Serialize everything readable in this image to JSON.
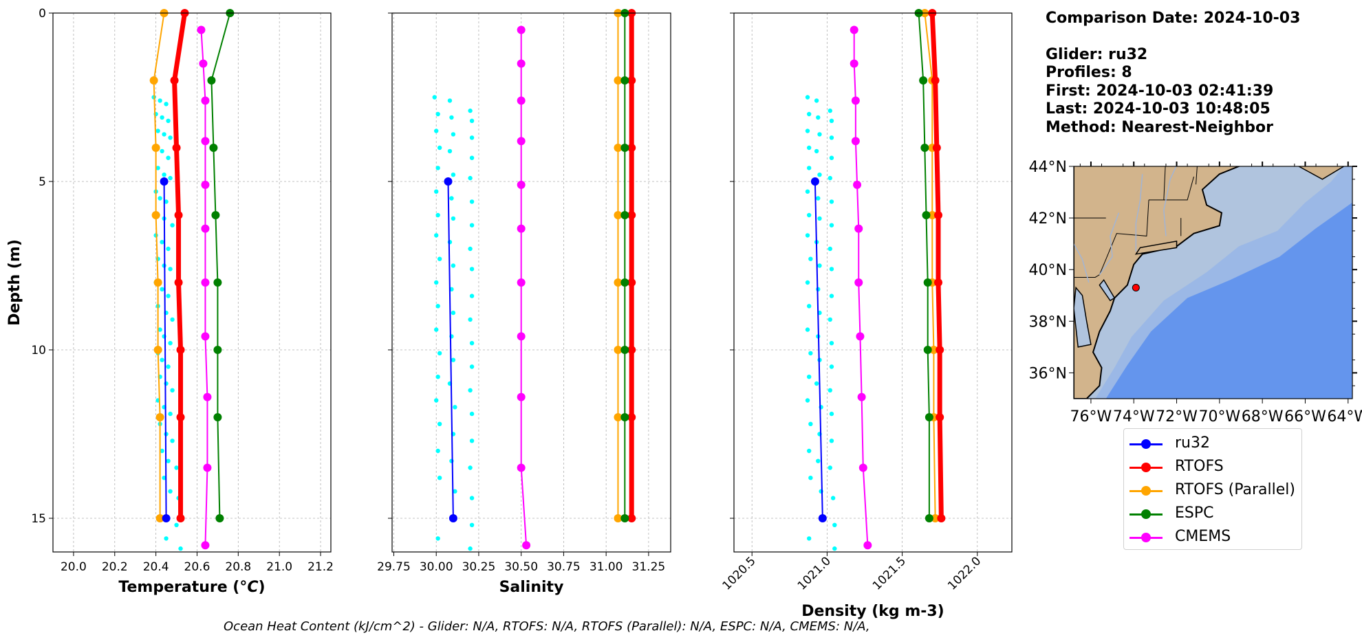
{
  "info": {
    "comparison_date": "Comparison Date: 2024-10-03",
    "glider": "Glider: ru32",
    "profiles": "Profiles: 8",
    "first": "First: 2024-10-03 02:41:39",
    "last": "Last: 2024-10-03 10:48:05",
    "method": "Method: Nearest-Neighbor"
  },
  "legend": [
    {
      "name": "ru32",
      "color": "#0000ff"
    },
    {
      "name": "RTOFS",
      "color": "#ff0000"
    },
    {
      "name": "RTOFS (Parallel)",
      "color": "#ffa500"
    },
    {
      "name": "ESPC",
      "color": "#008000"
    },
    {
      "name": "CMEMS",
      "color": "#ff00ff"
    }
  ],
  "footer": "Ocean Heat Content (kJ/cm^2) - Glider: N/A,  RTOFS: N/A,  RTOFS (Parallel): N/A,  ESPC: N/A,  CMEMS: N/A,",
  "chart_data": [
    {
      "type": "line",
      "xlabel": "Temperature (°C)",
      "xlabel_html": "Temperature (<tspan font-style='italic'>°C</tspan>)",
      "ylabel": "Depth (m)",
      "xlim": [
        19.9,
        21.25
      ],
      "ylim": [
        16,
        0
      ],
      "xticks": [
        "20.0",
        "20.2",
        "20.4",
        "20.6",
        "20.8",
        "21.0",
        "21.2"
      ],
      "xtick_values": [
        20.0,
        20.2,
        20.4,
        20.6,
        20.8,
        21.0,
        21.2
      ],
      "yticks": [
        "0",
        "5",
        "10",
        "15"
      ],
      "ytick_values": [
        0,
        5,
        10,
        15
      ],
      "grid": true,
      "glider_scatter": {
        "name": "ru32 (raw)",
        "color": "#00ffff",
        "x": [
          20.39,
          20.42,
          20.45,
          20.4,
          20.43,
          20.46,
          20.41,
          20.44,
          20.47,
          20.4,
          20.43,
          20.46,
          20.41,
          20.44,
          20.47,
          20.4,
          20.42,
          20.45,
          20.41,
          20.44,
          20.48,
          20.4,
          20.43,
          20.46,
          20.41,
          20.44,
          20.47,
          20.4,
          20.43,
          20.46,
          20.41,
          20.45,
          20.48,
          20.42,
          20.44,
          20.47,
          20.41,
          20.43,
          20.46,
          20.42,
          20.45,
          20.48,
          20.41,
          20.44,
          20.47,
          20.42,
          20.45,
          20.48,
          20.43,
          20.46,
          20.5,
          20.44,
          20.47,
          20.51,
          20.45,
          20.5,
          20.52
        ],
        "y": [
          2.5,
          2.6,
          2.7,
          3.0,
          3.1,
          3.2,
          3.5,
          3.6,
          3.7,
          4.0,
          4.1,
          4.3,
          4.6,
          4.8,
          4.9,
          5.3,
          5.5,
          5.6,
          6.0,
          6.1,
          6.3,
          6.6,
          6.8,
          7.0,
          7.3,
          7.5,
          7.6,
          8.0,
          8.2,
          8.4,
          8.7,
          8.9,
          9.1,
          9.4,
          9.6,
          9.8,
          10.1,
          10.3,
          10.5,
          10.8,
          11.0,
          11.2,
          11.5,
          11.7,
          11.9,
          12.2,
          12.5,
          12.7,
          13.0,
          13.3,
          13.5,
          13.8,
          14.2,
          14.4,
          15.6,
          15.2,
          15.9
        ]
      },
      "series": [
        {
          "name": "RTOFS (Parallel)",
          "color": "#ffa500",
          "width": 2,
          "x": [
            20.44,
            20.39,
            20.4,
            20.4,
            20.41,
            20.41,
            20.42,
            20.42
          ],
          "y": [
            0,
            2,
            4,
            6,
            8,
            10,
            12,
            15
          ]
        },
        {
          "name": "RTOFS",
          "color": "#ff0000",
          "width": 7,
          "x": [
            20.54,
            20.49,
            20.5,
            20.51,
            20.51,
            20.52,
            20.52,
            20.52
          ],
          "y": [
            0,
            2,
            4,
            6,
            8,
            10,
            12,
            15
          ]
        },
        {
          "name": "ESPC",
          "color": "#008000",
          "width": 2,
          "x": [
            20.76,
            20.67,
            20.68,
            20.69,
            20.7,
            20.7,
            20.7,
            20.71
          ],
          "y": [
            0,
            2,
            4,
            6,
            8,
            10,
            12,
            15
          ]
        },
        {
          "name": "CMEMS",
          "color": "#ff00ff",
          "width": 2,
          "x": [
            20.62,
            20.63,
            20.64,
            20.64,
            20.64,
            20.64,
            20.64,
            20.64,
            20.65,
            20.65,
            20.64
          ],
          "y": [
            0.5,
            1.5,
            2.6,
            3.8,
            5.1,
            6.4,
            8.0,
            9.6,
            11.4,
            13.5,
            15.8
          ]
        },
        {
          "name": "ru32",
          "color": "#0000ff",
          "width": 2,
          "x": [
            20.44,
            20.45
          ],
          "y": [
            5,
            15
          ]
        }
      ]
    },
    {
      "type": "line",
      "xlabel": "Salinity",
      "xlim": [
        29.74,
        31.38
      ],
      "ylim": [
        16,
        0
      ],
      "xticks": [
        "29.75",
        "30.00",
        "30.25",
        "30.50",
        "30.75",
        "31.00",
        "31.25"
      ],
      "xtick_values": [
        29.75,
        30.0,
        30.25,
        30.5,
        30.75,
        31.0,
        31.25
      ],
      "grid": true,
      "glider_scatter": {
        "name": "ru32 (raw)",
        "color": "#00ffff",
        "x": [
          29.99,
          30.08,
          30.2,
          30.01,
          30.09,
          30.21,
          30.0,
          30.1,
          30.21,
          30.02,
          30.08,
          30.21,
          30.01,
          30.1,
          30.2,
          30.0,
          30.09,
          30.21,
          30.01,
          30.1,
          30.21,
          30.0,
          30.08,
          30.2,
          30.02,
          30.1,
          30.21,
          30.0,
          30.09,
          30.21,
          30.01,
          30.1,
          30.2,
          30.0,
          30.09,
          30.21,
          30.02,
          30.1,
          30.21,
          30.01,
          30.08,
          30.2,
          30.0,
          30.11,
          30.21,
          30.02,
          30.1,
          30.21,
          30.01,
          30.09,
          30.2,
          30.02,
          30.11,
          30.21,
          30.01,
          30.21,
          30.2
        ],
        "y": [
          2.5,
          2.6,
          2.9,
          3.0,
          3.1,
          3.2,
          3.5,
          3.6,
          3.7,
          4.0,
          4.1,
          4.3,
          4.6,
          4.8,
          4.9,
          5.3,
          5.5,
          5.6,
          6.0,
          6.1,
          6.3,
          6.6,
          6.8,
          7.0,
          7.3,
          7.5,
          7.6,
          8.0,
          8.2,
          8.4,
          8.7,
          8.9,
          9.1,
          9.4,
          9.6,
          9.8,
          10.1,
          10.3,
          10.5,
          10.8,
          11.0,
          11.2,
          11.5,
          11.7,
          11.9,
          12.2,
          12.5,
          12.7,
          13.0,
          13.3,
          13.5,
          13.8,
          14.2,
          14.4,
          15.6,
          15.2,
          15.9
        ]
      },
      "series": [
        {
          "name": "RTOFS (Parallel)",
          "color": "#ffa500",
          "width": 2,
          "x": [
            31.07,
            31.07,
            31.07,
            31.07,
            31.07,
            31.07,
            31.07,
            31.07
          ],
          "y": [
            0,
            2,
            4,
            6,
            8,
            10,
            12,
            15
          ]
        },
        {
          "name": "RTOFS",
          "color": "#ff0000",
          "width": 7,
          "x": [
            31.15,
            31.15,
            31.15,
            31.15,
            31.15,
            31.15,
            31.15,
            31.15
          ],
          "y": [
            0,
            2,
            4,
            6,
            8,
            10,
            12,
            15
          ]
        },
        {
          "name": "ESPC",
          "color": "#008000",
          "width": 2,
          "x": [
            31.11,
            31.11,
            31.11,
            31.11,
            31.11,
            31.11,
            31.11,
            31.11
          ],
          "y": [
            0,
            2,
            4,
            6,
            8,
            10,
            12,
            15
          ]
        },
        {
          "name": "CMEMS",
          "color": "#ff00ff",
          "width": 2,
          "x": [
            30.5,
            30.5,
            30.5,
            30.5,
            30.5,
            30.5,
            30.5,
            30.5,
            30.5,
            30.5,
            30.53
          ],
          "y": [
            0.5,
            1.5,
            2.6,
            3.8,
            5.1,
            6.4,
            8.0,
            9.6,
            11.4,
            13.5,
            15.8
          ]
        },
        {
          "name": "ru32",
          "color": "#0000ff",
          "width": 2,
          "x": [
            30.07,
            30.1
          ],
          "y": [
            5,
            15
          ]
        }
      ]
    },
    {
      "type": "line",
      "xlabel": "Density (kg m-3)",
      "xlim": [
        1020.38,
        1022.23
      ],
      "ylim": [
        16,
        0
      ],
      "xticks": [
        "1020.5",
        "1021.0",
        "1021.5",
        "1022.0"
      ],
      "xtick_values": [
        1020.5,
        1021.0,
        1021.5,
        1022.0
      ],
      "xtick_rotation": 45,
      "grid": true,
      "glider_scatter": {
        "name": "ru32 (raw)",
        "color": "#00ffff",
        "x": [
          1020.87,
          1020.93,
          1021.02,
          1020.88,
          1020.94,
          1021.03,
          1020.87,
          1020.95,
          1021.03,
          1020.88,
          1020.93,
          1021.03,
          1020.88,
          1020.95,
          1021.02,
          1020.87,
          1020.94,
          1021.03,
          1020.88,
          1020.95,
          1021.03,
          1020.87,
          1020.93,
          1021.02,
          1020.89,
          1020.95,
          1021.03,
          1020.87,
          1020.94,
          1021.03,
          1020.88,
          1020.95,
          1021.02,
          1020.87,
          1020.94,
          1021.03,
          1020.89,
          1020.95,
          1021.03,
          1020.88,
          1020.93,
          1021.02,
          1020.87,
          1020.96,
          1021.03,
          1020.89,
          1020.95,
          1021.03,
          1020.88,
          1020.94,
          1021.02,
          1020.89,
          1020.96,
          1021.04,
          1020.88,
          1021.05,
          1021.05
        ],
        "y": [
          2.5,
          2.6,
          2.9,
          3.0,
          3.1,
          3.2,
          3.5,
          3.6,
          3.7,
          4.0,
          4.1,
          4.3,
          4.6,
          4.8,
          4.9,
          5.3,
          5.5,
          5.6,
          6.0,
          6.1,
          6.3,
          6.6,
          6.8,
          7.0,
          7.3,
          7.5,
          7.6,
          8.0,
          8.2,
          8.4,
          8.7,
          8.9,
          9.1,
          9.4,
          9.6,
          9.8,
          10.1,
          10.3,
          10.5,
          10.8,
          11.0,
          11.2,
          11.5,
          11.7,
          11.9,
          12.2,
          12.5,
          12.7,
          13.0,
          13.3,
          13.5,
          13.8,
          14.2,
          14.4,
          15.6,
          15.2,
          15.9
        ]
      },
      "series": [
        {
          "name": "RTOFS (Parallel)",
          "color": "#ffa500",
          "width": 2,
          "x": [
            1021.65,
            1021.7,
            1021.7,
            1021.7,
            1021.7,
            1021.71,
            1021.71,
            1021.72
          ],
          "y": [
            0,
            2,
            4,
            6,
            8,
            10,
            12,
            15
          ]
        },
        {
          "name": "RTOFS",
          "color": "#ff0000",
          "width": 7,
          "x": [
            1021.7,
            1021.72,
            1021.73,
            1021.74,
            1021.74,
            1021.75,
            1021.75,
            1021.76
          ],
          "y": [
            0,
            2,
            4,
            6,
            8,
            10,
            12,
            15
          ]
        },
        {
          "name": "ESPC",
          "color": "#008000",
          "width": 2,
          "x": [
            1021.61,
            1021.64,
            1021.65,
            1021.66,
            1021.67,
            1021.67,
            1021.68,
            1021.68
          ],
          "y": [
            0,
            2,
            4,
            6,
            8,
            10,
            12,
            15
          ]
        },
        {
          "name": "CMEMS",
          "color": "#ff00ff",
          "width": 2,
          "x": [
            1021.18,
            1021.18,
            1021.19,
            1021.19,
            1021.2,
            1021.21,
            1021.21,
            1021.22,
            1021.23,
            1021.24,
            1021.27
          ],
          "y": [
            0.5,
            1.5,
            2.6,
            3.8,
            5.1,
            6.4,
            8.0,
            9.6,
            11.4,
            13.5,
            15.8
          ]
        },
        {
          "name": "ru32",
          "color": "#0000ff",
          "width": 2,
          "x": [
            1020.92,
            1020.97
          ],
          "y": [
            5,
            15
          ]
        }
      ]
    }
  ],
  "map": {
    "xticks": [
      "76°W",
      "74°W",
      "72°W",
      "70°W",
      "68°W",
      "66°W",
      "64°W"
    ],
    "lon_values": [
      -76,
      -74,
      -72,
      -70,
      -68,
      -66,
      -64
    ],
    "yticks": [
      "44°N",
      "42°N",
      "40°N",
      "38°N",
      "36°N"
    ],
    "lat_values": [
      44,
      42,
      40,
      38,
      36
    ],
    "lon_range": [
      -76.8,
      -63.8
    ],
    "lat_range": [
      35,
      44
    ],
    "glider_position": {
      "lon": -73.9,
      "lat": 39.3
    },
    "land_color": "#d2b48c",
    "shelf_color": "#b0c4de",
    "slope_color": "#9bb8e6",
    "ocean_color": "#6495ed",
    "marker_color": "#ff0000"
  }
}
